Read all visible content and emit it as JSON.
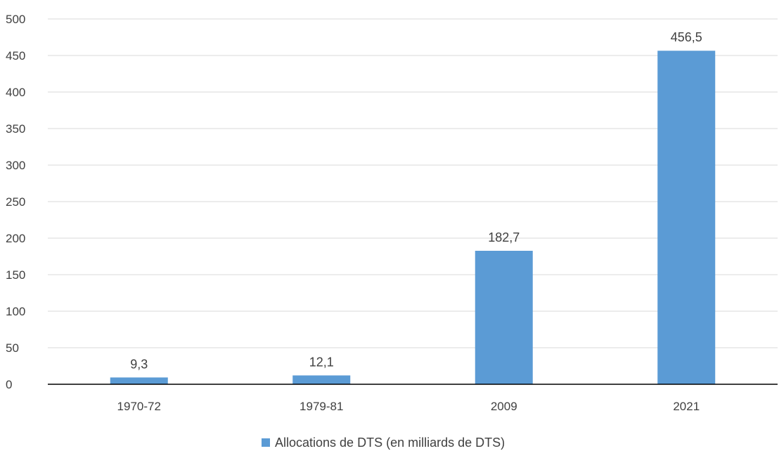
{
  "chart_data": {
    "type": "bar",
    "categories": [
      "1970-72",
      "1979-81",
      "2009",
      "2021"
    ],
    "series": [
      {
        "name": "Allocations de DTS (en milliards de DTS)",
        "values": [
          9.3,
          12.1,
          182.7,
          456.5
        ],
        "labels": [
          "9,3",
          "12,1",
          "182,7",
          "456,5"
        ],
        "color": "#5b9bd5"
      }
    ],
    "yticks": [
      0,
      50,
      100,
      150,
      200,
      250,
      300,
      350,
      400,
      450,
      500
    ],
    "ylim": [
      0,
      500
    ],
    "grid": true,
    "legend_position": "bottom",
    "gridline_color": "#d9d9d9",
    "axis_color": "#000000",
    "text_color": "#404040"
  }
}
